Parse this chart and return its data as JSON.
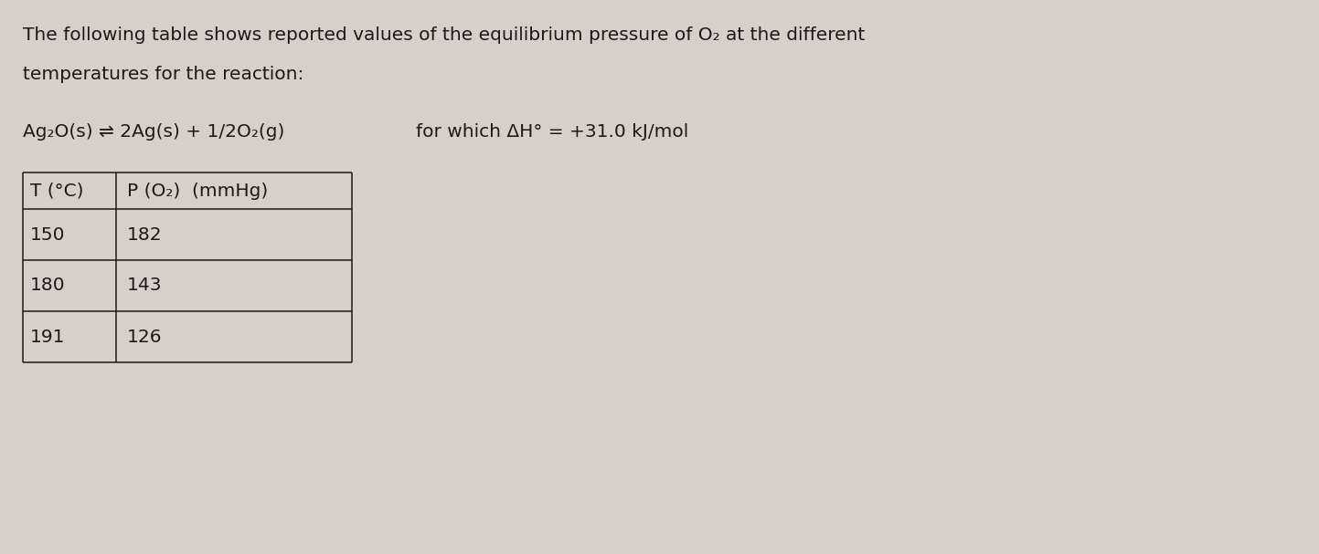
{
  "background_color": "#d8d0c8",
  "text_color": "#1a1a1a",
  "line1": "The following table shows reported values of the equilibrium pressure of O₂ at the different",
  "line2": "temperatures for the reaction:",
  "reaction_left": "Ag₂O(s) ⇌ 2Ag(s) + 1/2O₂(g)",
  "reaction_right": "for which ΔH° = +31.0 kJ/mol",
  "col1_header": "T (°C)",
  "col2_header": "P (O₂)  (mmHg)",
  "table_data": [
    [
      "150",
      "182"
    ],
    [
      "180",
      "143"
    ],
    [
      "191",
      "126"
    ]
  ],
  "font_size": 14.5,
  "fig_width": 14.43,
  "fig_height": 6.07,
  "dpi": 100
}
